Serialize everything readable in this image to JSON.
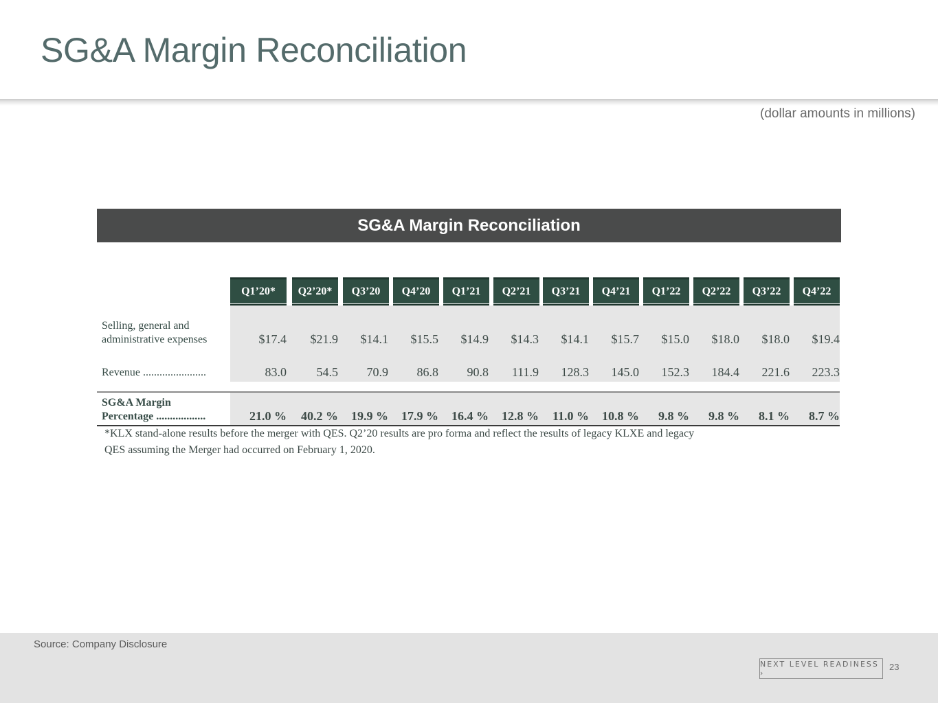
{
  "slide": {
    "title": "SG&A Margin Reconciliation",
    "units_note": "(dollar amounts in millions)"
  },
  "table": {
    "banner_title": "SG&A Margin Reconciliation",
    "periods": [
      "Q1’20*",
      "Q2’20*",
      "Q3’20",
      "Q4’20",
      "Q1’21",
      "Q2’21",
      "Q3’21",
      "Q4’21",
      "Q1’22",
      "Q2’22",
      "Q3’22",
      "Q4’22"
    ],
    "rows": {
      "sga": {
        "label_line1": "Selling, general and",
        "label_line2": "administrative expenses",
        "values": [
          "$17.4",
          "$21.9",
          "$14.1",
          "$15.5",
          "$14.9",
          "$14.3",
          "$14.1",
          "$15.7",
          "$15.0",
          "$18.0",
          "$18.0",
          "$19.4"
        ]
      },
      "revenue": {
        "label": "Revenue .......................",
        "values": [
          "83.0",
          "54.5",
          "70.9",
          "86.8",
          "90.8",
          "111.9",
          "128.3",
          "145.0",
          "152.3",
          "184.4",
          "221.6",
          "223.3"
        ]
      },
      "margin": {
        "label_line1": "SG&A Margin",
        "label_line2": "Percentage ..................",
        "values": [
          "21.0 %",
          "40.2 %",
          "19.9 %",
          "17.9 %",
          "16.4 %",
          "12.8 %",
          "11.0 %",
          "10.8 %",
          "9.8 %",
          "9.8 %",
          "8.1 %",
          "8.7 %"
        ]
      }
    },
    "footnote_line1": "*KLX stand-alone results before the merger with QES. Q2’20 results are pro forma and reflect the results of legacy KLXE and legacy",
    "footnote_line2": "QES assuming the Merger had occurred on February 1, 2020."
  },
  "footer": {
    "source": "Source: Company Disclosure",
    "brand": "NEXT LEVEL READINESS ›",
    "page_number": "23"
  }
}
